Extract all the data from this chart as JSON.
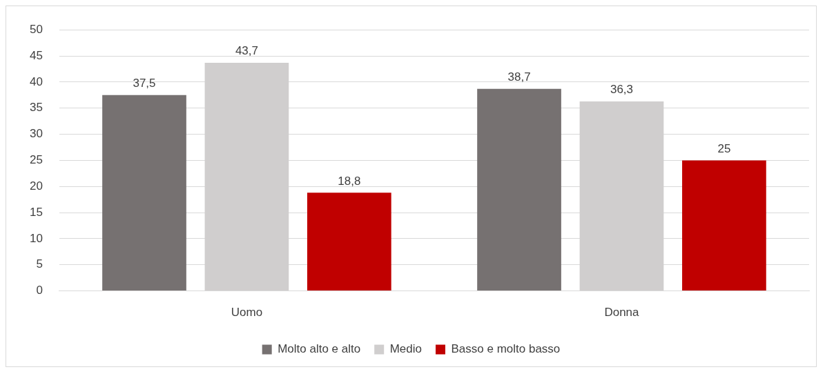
{
  "chart_data": {
    "type": "bar",
    "categories": [
      "Uomo",
      "Donna"
    ],
    "series": [
      {
        "name": "Molto alto e alto",
        "color": "#767171",
        "values": [
          37.5,
          38.7
        ],
        "value_labels": [
          "37,5",
          "38,7"
        ]
      },
      {
        "name": "Medio",
        "color": "#d0cece",
        "values": [
          43.7,
          36.3
        ],
        "value_labels": [
          "43,7",
          "36,3"
        ]
      },
      {
        "name": "Basso e molto basso",
        "color": "#c00000",
        "values": [
          18.8,
          25
        ],
        "value_labels": [
          "18,8",
          "25"
        ]
      }
    ],
    "ylim": [
      0,
      50
    ],
    "yticks": [
      0,
      5,
      10,
      15,
      20,
      25,
      30,
      35,
      40,
      45,
      50
    ],
    "grid": "y",
    "legend": "bottom"
  }
}
